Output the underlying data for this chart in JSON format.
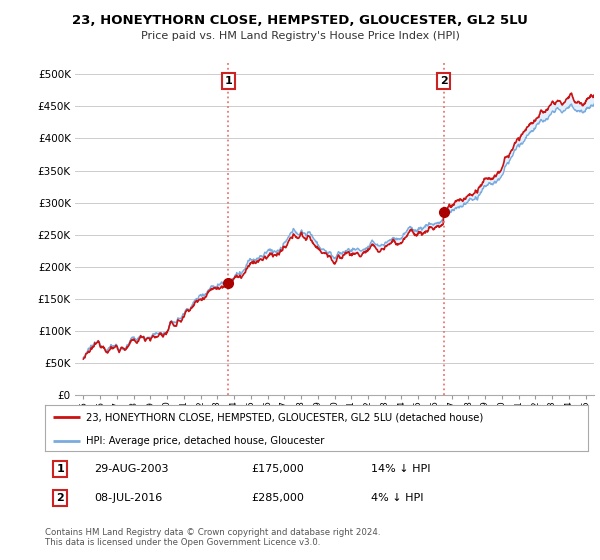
{
  "title": "23, HONEYTHORN CLOSE, HEMPSTED, GLOUCESTER, GL2 5LU",
  "subtitle": "Price paid vs. HM Land Registry's House Price Index (HPI)",
  "ylabel_ticks": [
    "£0",
    "£50K",
    "£100K",
    "£150K",
    "£200K",
    "£250K",
    "£300K",
    "£350K",
    "£400K",
    "£450K",
    "£500K"
  ],
  "ytick_values": [
    0,
    50000,
    100000,
    150000,
    200000,
    250000,
    300000,
    350000,
    400000,
    450000,
    500000
  ],
  "ylim": [
    0,
    520000
  ],
  "xlim_start": 1994.5,
  "xlim_end": 2025.5,
  "xtick_years": [
    1995,
    1996,
    1997,
    1998,
    1999,
    2000,
    2001,
    2002,
    2003,
    2004,
    2005,
    2006,
    2007,
    2008,
    2009,
    2010,
    2011,
    2012,
    2013,
    2014,
    2015,
    2016,
    2017,
    2018,
    2019,
    2020,
    2021,
    2022,
    2023,
    2024,
    2025
  ],
  "transaction1_date": 2003.66,
  "transaction1_price": 175000,
  "transaction2_date": 2016.52,
  "transaction2_price": 285000,
  "vline_color": "#e87878",
  "marker_color": "#aa0000",
  "hpi_line_color": "#7aabdc",
  "price_line_color": "#cc1111",
  "fill_color": "#ddeeff",
  "legend_label_price": "23, HONEYTHORN CLOSE, HEMPSTED, GLOUCESTER, GL2 5LU (detached house)",
  "legend_label_hpi": "HPI: Average price, detached house, Gloucester",
  "footer": "Contains HM Land Registry data © Crown copyright and database right 2024.\nThis data is licensed under the Open Government Licence v3.0.",
  "chart_bg": "#ffffff"
}
